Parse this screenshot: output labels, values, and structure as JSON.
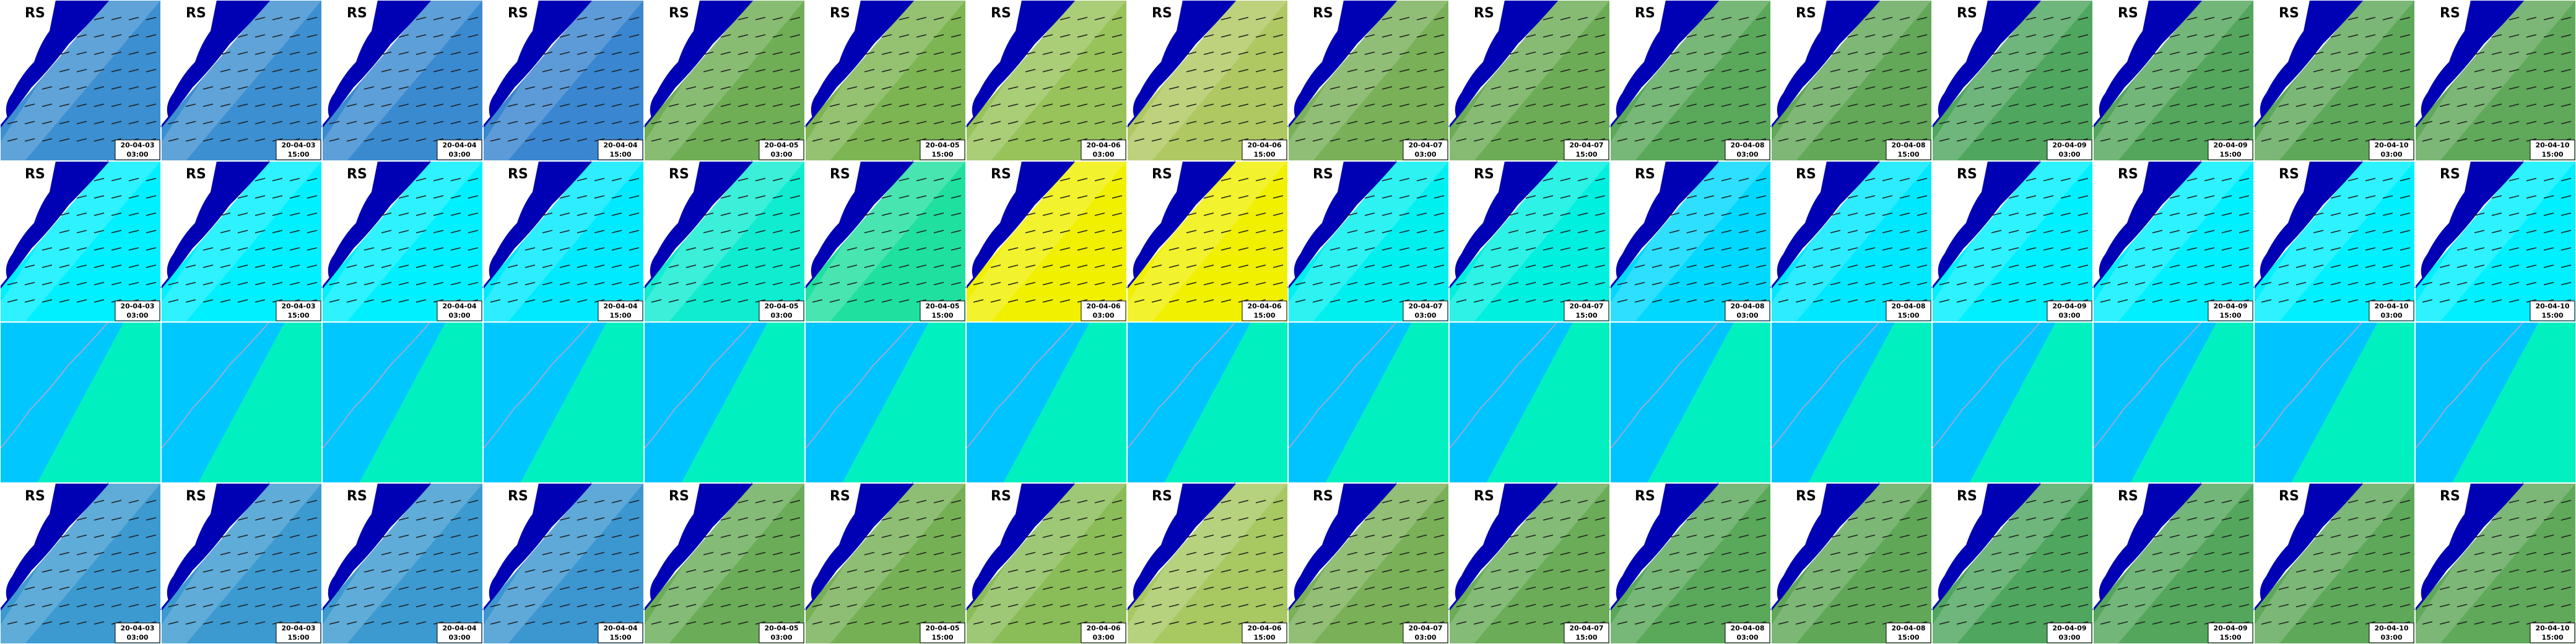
{
  "columns": [
    {
      "date": "20-04-03",
      "time": "03:00"
    },
    {
      "date": "20-04-03",
      "time": "15:00"
    },
    {
      "date": "20-04-04",
      "time": "03:00"
    },
    {
      "date": "20-04-04",
      "time": "15:00"
    },
    {
      "date": "20-04-05",
      "time": "03:00"
    },
    {
      "date": "20-04-05",
      "time": "15:00"
    },
    {
      "date": "20-04-06",
      "time": "03:00"
    },
    {
      "date": "20-04-06",
      "time": "15:00"
    },
    {
      "date": "20-04-07",
      "time": "03:00"
    },
    {
      "date": "20-04-07",
      "time": "15:00"
    },
    {
      "date": "20-04-08",
      "time": "03:00"
    },
    {
      "date": "20-04-08",
      "time": "15:00"
    },
    {
      "date": "20-04-09",
      "time": "03:00"
    },
    {
      "date": "20-04-09",
      "time": "15:00"
    },
    {
      "date": "20-04-10",
      "time": "03:00"
    },
    {
      "date": "20-04-10",
      "time": "15:00"
    }
  ],
  "rows": [
    {
      "label": "RS",
      "colors": [
        "#3c8fd0",
        "#3c8fd0",
        "#3a8ad0",
        "#3a86d0",
        "#6fae55",
        "#7db552",
        "#98c25a",
        "#b0c862",
        "#79b058",
        "#6dac56",
        "#5aa85a",
        "#62a858",
        "#4fa65e",
        "#54a65c",
        "#5ea85a",
        "#60a85a"
      ]
    },
    {
      "label": "RS",
      "colors": [
        "#00f0ff",
        "#00f0ff",
        "#00f0ff",
        "#00eaff",
        "#10ecd0",
        "#20e0a0",
        "#f0f000",
        "#f0f000",
        "#00f0f0",
        "#00f0e0",
        "#00d8ff",
        "#00e8ff",
        "#00f0ff",
        "#00f0ff",
        "#00f0ff",
        "#00f0ff"
      ]
    },
    {
      "colors": [
        "#00c8ff",
        "#00c8ff",
        "#00c8ff",
        "#00c8ff",
        "#00c4ff",
        "#00c4ff",
        "#00c4ff",
        "#00c4ff",
        "#00c4ff",
        "#00c4ff",
        "#00c4ff",
        "#00c4ff",
        "#00c4ff",
        "#00c4ff",
        "#00c4ff",
        "#00c4ff"
      ]
    },
    {
      "label": "RS",
      "colors": [
        "#3c9ad0",
        "#3c9ad0",
        "#3c9ad0",
        "#3c96d0",
        "#6aac58",
        "#76b055",
        "#8abc58",
        "#a8c862",
        "#7ab058",
        "#6aac58",
        "#5aa85a",
        "#60a858",
        "#4fa65e",
        "#54a65c",
        "#5ea85a",
        "#60a85a"
      ]
    }
  ]
}
